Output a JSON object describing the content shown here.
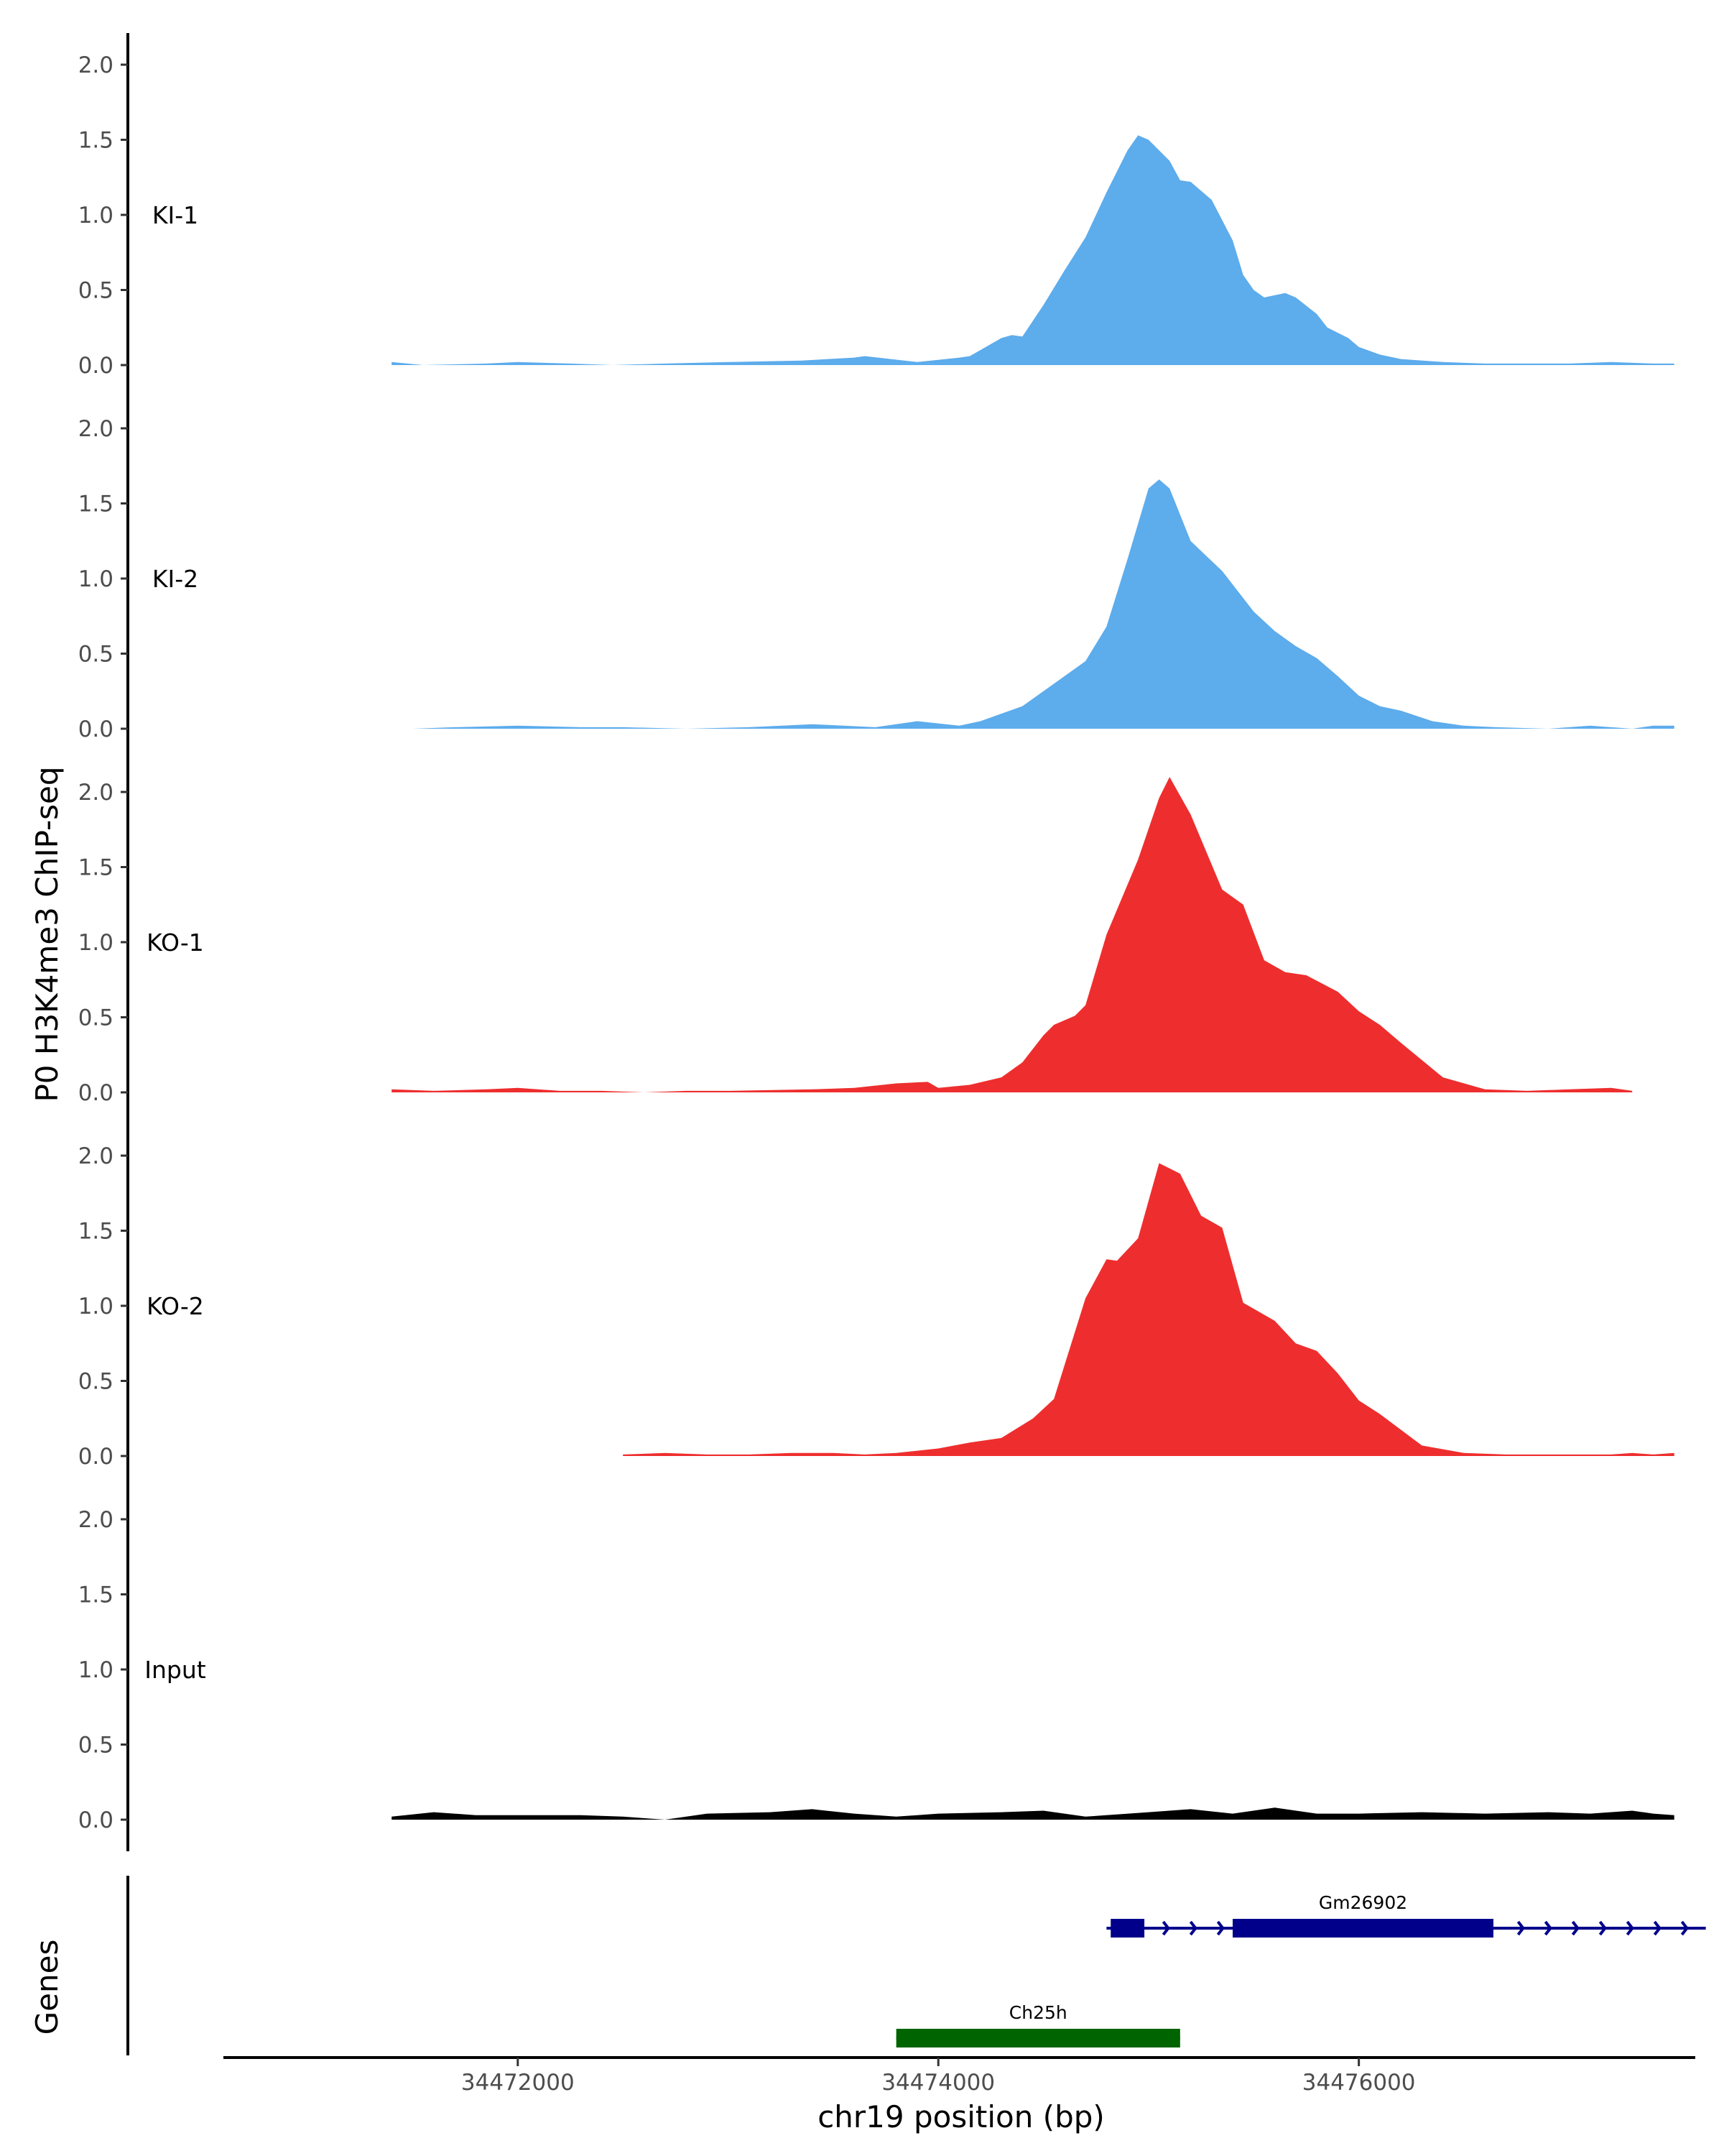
{
  "chart_data": {
    "type": "area",
    "ylabel": "P0 H3K4me3 ChIP-seq",
    "xlabel": "chr19 position (bp)",
    "genes_label": "Genes",
    "ylim": [
      0,
      2.2
    ],
    "yticks": [
      0.0,
      0.5,
      1.0,
      1.5,
      2.0
    ],
    "ytick_labels": [
      "0.0",
      "0.5",
      "1.0",
      "1.5",
      "2.0"
    ],
    "xlim": [
      34470600,
      34477600
    ],
    "xticks": [
      34472000,
      34474000,
      34476000
    ],
    "xtick_labels": [
      "34472000",
      "34474000",
      "34476000"
    ],
    "grid": false,
    "series": [
      {
        "name": "KI-1",
        "color": "#5DACEC",
        "x": [
          34471400,
          34471550,
          34471850,
          34472000,
          34472250,
          34472450,
          34472700,
          34473000,
          34473350,
          34473600,
          34473650,
          34473900,
          34474100,
          34474150,
          34474200,
          34474300,
          34474350,
          34474400,
          34474500,
          34474600,
          34474700,
          34474800,
          34474900,
          34474950,
          34475000,
          34475100,
          34475150,
          34475200,
          34475300,
          34475400,
          34475450,
          34475500,
          34475550,
          34475650,
          34475700,
          34475800,
          34475850,
          34475950,
          34476000,
          34476100,
          34476200,
          34476400,
          34476600,
          34476800,
          34477000,
          34477200,
          34477400,
          34477500
        ],
        "y": [
          0.02,
          0.0,
          0.01,
          0.02,
          0.01,
          0.0,
          0.01,
          0.02,
          0.03,
          0.05,
          0.06,
          0.02,
          0.05,
          0.06,
          0.1,
          0.18,
          0.2,
          0.19,
          0.4,
          0.63,
          0.85,
          1.15,
          1.43,
          1.53,
          1.5,
          1.36,
          1.23,
          1.22,
          1.1,
          0.83,
          0.6,
          0.5,
          0.45,
          0.48,
          0.45,
          0.34,
          0.25,
          0.18,
          0.12,
          0.07,
          0.04,
          0.02,
          0.01,
          0.01,
          0.01,
          0.02,
          0.01,
          0.01
        ]
      },
      {
        "name": "KI-2",
        "color": "#5DACEC",
        "x": [
          34471500,
          34471700,
          34472000,
          34472300,
          34472500,
          34472800,
          34473100,
          34473400,
          34473550,
          34473700,
          34473900,
          34474100,
          34474200,
          34474400,
          34474500,
          34474700,
          34474800,
          34474900,
          34475000,
          34475050,
          34475100,
          34475200,
          34475350,
          34475500,
          34475600,
          34475700,
          34475800,
          34475900,
          34476000,
          34476100,
          34476200,
          34476350,
          34476500,
          34476650,
          34476900,
          34477100,
          34477300,
          34477400,
          34477500
        ],
        "y": [
          0.0,
          0.01,
          0.02,
          0.01,
          0.01,
          0.0,
          0.01,
          0.03,
          0.02,
          0.01,
          0.05,
          0.02,
          0.05,
          0.15,
          0.25,
          0.45,
          0.68,
          1.13,
          1.6,
          1.66,
          1.6,
          1.25,
          1.05,
          0.78,
          0.65,
          0.55,
          0.47,
          0.35,
          0.22,
          0.15,
          0.12,
          0.05,
          0.02,
          0.01,
          0.0,
          0.02,
          0.0,
          0.02,
          0.02
        ]
      },
      {
        "name": "KO-1",
        "color": "#EE2E2E",
        "x": [
          34471400,
          34471600,
          34471850,
          34472000,
          34472200,
          34472400,
          34472600,
          34472800,
          34473000,
          34473400,
          34473600,
          34473800,
          34473950,
          34474000,
          34474150,
          34474300,
          34474400,
          34474500,
          34474550,
          34474650,
          34474700,
          34474800,
          34474950,
          34475050,
          34475100,
          34475200,
          34475350,
          34475450,
          34475550,
          34475650,
          34475750,
          34475900,
          34476000,
          34476100,
          34476200,
          34476400,
          34476600,
          34476800,
          34477000,
          34477200,
          34477300
        ],
        "y": [
          0.02,
          0.01,
          0.02,
          0.03,
          0.01,
          0.01,
          0.0,
          0.01,
          0.01,
          0.02,
          0.03,
          0.06,
          0.07,
          0.03,
          0.05,
          0.1,
          0.2,
          0.38,
          0.45,
          0.51,
          0.58,
          1.05,
          1.55,
          1.96,
          2.1,
          1.85,
          1.35,
          1.25,
          0.88,
          0.8,
          0.78,
          0.67,
          0.54,
          0.45,
          0.33,
          0.1,
          0.02,
          0.01,
          0.02,
          0.03,
          0.01
        ]
      },
      {
        "name": "KO-2",
        "color": "#EE2E2E",
        "x": [
          34472500,
          34472700,
          34472900,
          34473100,
          34473300,
          34473500,
          34473650,
          34473800,
          34474000,
          34474150,
          34474300,
          34474450,
          34474550,
          34474700,
          34474800,
          34474850,
          34474950,
          34475050,
          34475150,
          34475250,
          34475350,
          34475450,
          34475600,
          34475700,
          34475800,
          34475900,
          34476000,
          34476100,
          34476300,
          34476500,
          34476700,
          34477000,
          34477200,
          34477300,
          34477400,
          34477500
        ],
        "y": [
          0.01,
          0.02,
          0.01,
          0.01,
          0.02,
          0.02,
          0.01,
          0.02,
          0.05,
          0.09,
          0.12,
          0.25,
          0.38,
          1.05,
          1.31,
          1.3,
          1.45,
          1.95,
          1.88,
          1.6,
          1.52,
          1.02,
          0.9,
          0.75,
          0.7,
          0.55,
          0.37,
          0.28,
          0.07,
          0.02,
          0.01,
          0.01,
          0.01,
          0.02,
          0.01,
          0.02
        ]
      },
      {
        "name": "Input",
        "color": "#000000",
        "x": [
          34471400,
          34471600,
          34471800,
          34472000,
          34472300,
          34472500,
          34472700,
          34472900,
          34473200,
          34473400,
          34473600,
          34473800,
          34474000,
          34474300,
          34474500,
          34474700,
          34475000,
          34475200,
          34475400,
          34475600,
          34475800,
          34476000,
          34476300,
          34476600,
          34476900,
          34477100,
          34477300,
          34477400,
          34477500
        ],
        "y": [
          0.02,
          0.05,
          0.03,
          0.03,
          0.03,
          0.02,
          0.0,
          0.04,
          0.05,
          0.07,
          0.04,
          0.02,
          0.04,
          0.05,
          0.06,
          0.02,
          0.05,
          0.07,
          0.04,
          0.08,
          0.04,
          0.04,
          0.05,
          0.04,
          0.05,
          0.04,
          0.06,
          0.04,
          0.03
        ]
      }
    ],
    "genes": [
      {
        "name": "Ch25h",
        "color": "#006400",
        "start": 34473800,
        "end": 34475150,
        "row": 2,
        "exons": [
          [
            34473800,
            34475150
          ]
        ],
        "strand": "-"
      },
      {
        "name": "Gm26902",
        "color": "#00008B",
        "start": 34474800,
        "end": 34477650,
        "row": 1,
        "exons": [
          [
            34474820,
            34474980
          ],
          [
            34475400,
            34476640
          ]
        ],
        "strand": "+"
      }
    ]
  }
}
